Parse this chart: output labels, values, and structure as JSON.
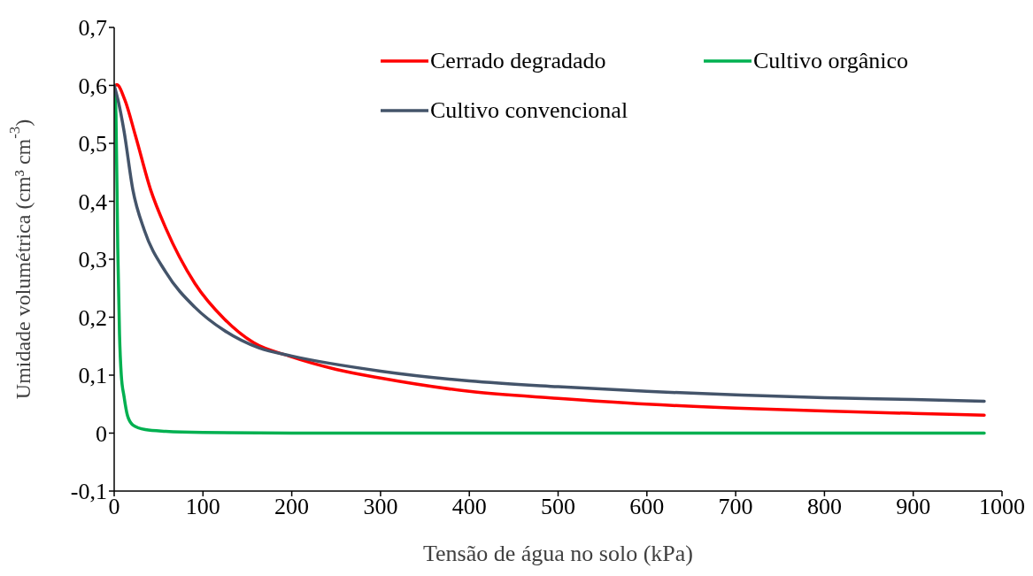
{
  "chart_data": {
    "type": "line",
    "xlabel": "Tensão de água no solo (kPa)",
    "ylabel": "Umidade volumétrica (cm³ cm$^{-3}$)",
    "xlim": [
      0,
      1000
    ],
    "xticks": [
      0,
      100,
      200,
      300,
      400,
      500,
      600,
      700,
      800,
      900,
      1000
    ],
    "ylim": [
      -0.1,
      0.7
    ],
    "yticks": [
      {
        "value": -0.1,
        "label": "-0,1"
      },
      {
        "value": 0,
        "label": "0"
      },
      {
        "value": 0.1,
        "label": "0,1"
      },
      {
        "value": 0.2,
        "label": "0,2"
      },
      {
        "value": 0.3,
        "label": "0,3"
      },
      {
        "value": 0.4,
        "label": "0,4"
      },
      {
        "value": 0.5,
        "label": "0,5"
      },
      {
        "value": 0.6,
        "label": "0,6"
      },
      {
        "value": 0.7,
        "label": "0,7"
      }
    ],
    "grid": false,
    "legend": "top right",
    "marker": "none",
    "line_style": "solid",
    "series": [
      {
        "name": "Cerrado degradado",
        "color": "#ff0000",
        "x": [
          0,
          3,
          12,
          24,
          41,
          58,
          91,
          124,
          157,
          197,
          250,
          300,
          400,
          500,
          600,
          700,
          800,
          900,
          980
        ],
        "values": [
          0.598,
          0.601,
          0.575,
          0.513,
          0.42,
          0.354,
          0.258,
          0.197,
          0.156,
          0.133,
          0.11,
          0.095,
          0.072,
          0.06,
          0.05,
          0.043,
          0.038,
          0.034,
          0.031
        ]
      },
      {
        "name": "Cultivo orgânico",
        "color": "#00b050",
        "x": [
          0,
          2,
          4,
          6,
          8,
          11,
          15,
          21,
          35,
          58,
          100,
          200,
          400,
          600,
          800,
          980
        ],
        "values": [
          0.6,
          0.55,
          0.32,
          0.17,
          0.1,
          0.064,
          0.03,
          0.014,
          0.006,
          0.003,
          0.001,
          0,
          0,
          0,
          0,
          0
        ]
      },
      {
        "name": "Cultivo convencional",
        "color": "#44546a",
        "x": [
          0,
          5,
          11,
          21,
          34,
          58,
          91,
          124,
          163,
          200,
          300,
          400,
          500,
          600,
          700,
          800,
          900,
          980
        ],
        "values": [
          0.6,
          0.57,
          0.522,
          0.42,
          0.35,
          0.278,
          0.217,
          0.177,
          0.147,
          0.133,
          0.107,
          0.09,
          0.08,
          0.072,
          0.066,
          0.061,
          0.058,
          0.055
        ]
      }
    ]
  }
}
